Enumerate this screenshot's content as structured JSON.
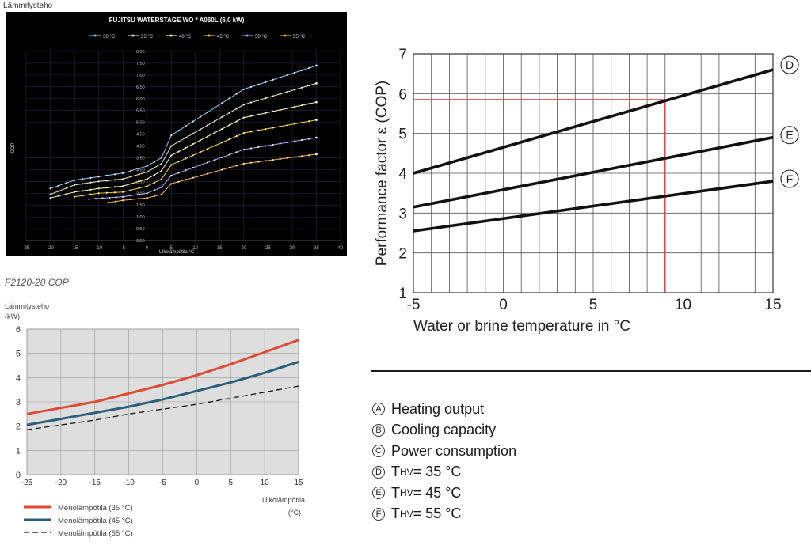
{
  "top_caption": "Lämmitysteho",
  "chart2_title": "F2120-20 COP",
  "chart_data": [
    {
      "type": "line",
      "title": "FUJITSU WATERSTAGE WO * A060L (6,0 kW)",
      "xlabel": "Ulkolämpötila °C",
      "ylabel": "COP",
      "xlim": [
        -25,
        40
      ],
      "ylim": [
        0,
        8
      ],
      "xticks": [
        -25,
        -20,
        -15,
        -10,
        -5,
        0,
        5,
        10,
        15,
        20,
        25,
        30,
        35,
        40
      ],
      "yticks": [
        0,
        0.5,
        1,
        1.5,
        2,
        2.5,
        3,
        3.5,
        4,
        4.5,
        5,
        5.5,
        6,
        6.5,
        7,
        7.5,
        8
      ],
      "ytick_labels": [
        "0,00",
        "0,50",
        "1,00",
        "1,50",
        "2,00",
        "2,50",
        "3,00",
        "3,50",
        "4,00",
        "4,50",
        "5,00",
        "5,50",
        "6,00",
        "6,50",
        "7,00",
        "7,50",
        "8,00"
      ],
      "legend_position": "top",
      "series": [
        {
          "name": "30 °C",
          "color": "#7fb6e6",
          "x": [
            -20,
            -15,
            -10,
            -5,
            0,
            3,
            5,
            20,
            35
          ],
          "y": [
            2.2,
            2.55,
            2.7,
            2.85,
            3.15,
            3.5,
            4.45,
            6.4,
            7.4
          ]
        },
        {
          "name": "35 °C",
          "color": "#d8dcb0",
          "x": [
            -20,
            -15,
            -10,
            -5,
            0,
            3,
            5,
            20,
            35
          ],
          "y": [
            1.95,
            2.35,
            2.5,
            2.6,
            2.9,
            3.25,
            4.0,
            5.75,
            6.65
          ]
        },
        {
          "name": "40 °C",
          "color": "#f1ea9a",
          "x": [
            -20,
            -15,
            -10,
            -5,
            0,
            3,
            5,
            20,
            35
          ],
          "y": [
            1.8,
            2.05,
            2.2,
            2.3,
            2.6,
            2.95,
            3.6,
            5.2,
            5.85
          ]
        },
        {
          "name": "45 °C",
          "color": "#f0c419",
          "x": [
            -15,
            -10,
            -5,
            0,
            3,
            5,
            20,
            35
          ],
          "y": [
            1.85,
            2.0,
            2.05,
            2.3,
            2.6,
            3.2,
            4.55,
            5.1
          ]
        },
        {
          "name": "50 °C",
          "color": "#9ea1e8",
          "x": [
            -12,
            -5,
            0,
            3,
            5,
            20,
            35
          ],
          "y": [
            1.75,
            1.85,
            2.0,
            2.25,
            2.75,
            3.85,
            4.35
          ]
        },
        {
          "name": "55 °C",
          "color": "#e8a53a",
          "x": [
            -8,
            -5,
            0,
            3,
            5,
            20,
            35
          ],
          "y": [
            1.6,
            1.7,
            1.8,
            1.95,
            2.4,
            3.25,
            3.65
          ]
        }
      ]
    },
    {
      "type": "line",
      "title": "",
      "ylabel_lines": [
        "Lämmitysteho",
        "(kW)"
      ],
      "xlabel_lines": [
        "Ulkolämpötila",
        "(°C)"
      ],
      "xlim": [
        -25,
        15
      ],
      "ylim": [
        0,
        6
      ],
      "xticks": [
        -25,
        -20,
        -15,
        -10,
        -5,
        0,
        5,
        10,
        15
      ],
      "yticks": [
        0,
        1,
        2,
        3,
        4,
        5,
        6
      ],
      "legend_position": "bottom-left",
      "series": [
        {
          "name": "Menolämpötila (35 °C)",
          "color": "#e04a35",
          "dash": false,
          "x": [
            -25,
            -20,
            -15,
            -10,
            -5,
            0,
            5,
            10,
            15
          ],
          "y": [
            2.5,
            2.75,
            3.0,
            3.35,
            3.7,
            4.1,
            4.55,
            5.05,
            5.55
          ]
        },
        {
          "name": "Menolämpötila (45 °C)",
          "color": "#2a5f7a",
          "dash": false,
          "x": [
            -25,
            -20,
            -15,
            -10,
            -5,
            0,
            5,
            10,
            15
          ],
          "y": [
            2.05,
            2.3,
            2.55,
            2.8,
            3.1,
            3.45,
            3.8,
            4.2,
            4.65
          ]
        },
        {
          "name": "Menolämpötila (55 °C)",
          "color": "#111111",
          "dash": true,
          "x": [
            -25,
            -20,
            -15,
            -10,
            -5,
            0,
            5,
            10,
            15
          ],
          "y": [
            1.85,
            2.05,
            2.25,
            2.5,
            2.7,
            2.9,
            3.15,
            3.4,
            3.65
          ]
        }
      ]
    },
    {
      "type": "line",
      "title": "",
      "xlabel": "Water or brine temperature in °C",
      "ylabel": "Performance factor ε (COP)",
      "xlim": [
        -5,
        15
      ],
      "ylim": [
        1,
        7
      ],
      "xticks": [
        -5,
        0,
        5,
        10,
        15
      ],
      "yticks": [
        1,
        2,
        3,
        4,
        5,
        6,
        7
      ],
      "series": [
        {
          "name": "D",
          "color": "#111111",
          "x": [
            -5,
            15
          ],
          "y": [
            4.0,
            6.6
          ]
        },
        {
          "name": "E",
          "color": "#111111",
          "x": [
            -5,
            15
          ],
          "y": [
            3.15,
            4.9
          ]
        },
        {
          "name": "F",
          "color": "#111111",
          "x": [
            -5,
            15
          ],
          "y": [
            2.55,
            3.8
          ]
        }
      ],
      "annotations": [
        {
          "type": "reference_lines",
          "color": "#d9333a",
          "x": 9,
          "y": 5.85
        }
      ]
    }
  ],
  "legend3": [
    {
      "symbol": "A",
      "label": "Heating output"
    },
    {
      "symbol": "B",
      "label": "Cooling capacity"
    },
    {
      "symbol": "C",
      "label": "Power consumption"
    },
    {
      "symbol": "D",
      "label": "T",
      "sub": "HV",
      "suffix": " = 35 °C"
    },
    {
      "symbol": "E",
      "label": "T",
      "sub": "HV",
      "suffix": " = 45 °C"
    },
    {
      "symbol": "F",
      "label": "T",
      "sub": "HV",
      "suffix": " = 55 °C"
    }
  ]
}
